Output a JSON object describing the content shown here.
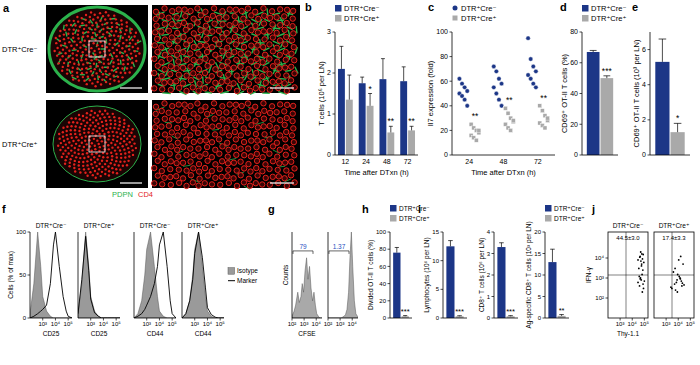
{
  "panel_a": {
    "title": "a",
    "rows": [
      "DTR⁺Cre⁻",
      "DTR⁺Cre⁺"
    ],
    "legend": [
      {
        "name": "PDPN",
        "color": "#2bb24c"
      },
      {
        "name": "CD4",
        "color": "#e3211c"
      }
    ]
  },
  "chart_data": [
    {
      "type": "bar",
      "title": "b",
      "y_label": "T cells (10⁶ per LN)",
      "x_label": "Time after DTxn (h)",
      "categories": [
        "12",
        "24",
        "48",
        "72"
      ],
      "ylim": [
        0,
        3
      ],
      "yticks": [
        0,
        1,
        2,
        3
      ],
      "legend": "top",
      "series": [
        {
          "name": "DTR⁺Cre⁻",
          "color": "#1c3687",
          "values": [
            2.1,
            1.75,
            1.85,
            1.8
          ],
          "errors": [
            0.55,
            0.15,
            0.5,
            0.35
          ]
        },
        {
          "name": "DTR⁺Cre⁺",
          "color": "#a9a9a9",
          "values": [
            1.35,
            1.2,
            0.55,
            0.6
          ],
          "errors": [
            0.6,
            0.3,
            0.15,
            0.1
          ]
        }
      ],
      "annotations": [
        null,
        "*",
        "**",
        "**"
      ]
    },
    {
      "type": "scatter",
      "title": "c",
      "y_label": "Il7 expression (fold)",
      "x_label": "Time after DTxn (h)",
      "categories": [
        "24",
        "48",
        "72"
      ],
      "ylim": [
        0,
        100
      ],
      "yticks": [
        0,
        20,
        40,
        60,
        80,
        100
      ],
      "legend": "top",
      "series": [
        {
          "name": "DTR⁺Cre⁻",
          "color": "#1c3687",
          "marker": "circle",
          "values": [
            [
              62,
              58,
              55,
              52,
              50,
              48,
              45,
              40
            ],
            [
              72,
              68,
              62,
              58,
              55,
              50,
              45,
              40
            ],
            [
              95,
              78,
              72,
              68,
              65,
              62,
              58,
              55
            ]
          ]
        },
        {
          "name": "DTR⁺Cre⁺",
          "color": "#a9a9a9",
          "marker": "square",
          "values": [
            [
              25,
              22,
              20,
              18,
              16,
              14,
              12,
              20
            ],
            [
              38,
              34,
              30,
              27,
              25,
              22,
              20,
              28
            ],
            [
              40,
              36,
              32,
              28,
              26,
              24,
              22,
              30
            ]
          ]
        }
      ],
      "annotations": [
        "**",
        "**",
        "**"
      ]
    },
    {
      "type": "bar",
      "title": "d",
      "y_label": "CD69⁺ OT-II T cells (%)",
      "categories": [
        null
      ],
      "ylim": [
        0,
        80
      ],
      "yticks": [
        0,
        20,
        40,
        60,
        80
      ],
      "legend": "top",
      "series": [
        {
          "name": "DTR⁺Cre⁻",
          "color": "#1c3687",
          "values": [
            67
          ],
          "errors": [
            1
          ]
        },
        {
          "name": "DTR⁺Cre⁺",
          "color": "#a9a9a9",
          "values": [
            50
          ],
          "errors": [
            1.5
          ]
        }
      ],
      "annotations": [
        "***"
      ]
    },
    {
      "type": "bar",
      "title": "e",
      "y_label": "CD69⁺ OT-II T cells (10³ per LN)",
      "categories": [
        null
      ],
      "ylim": [
        0,
        7
      ],
      "yticks": [
        0,
        2,
        4,
        6
      ],
      "series": [
        {
          "color": "#1c3687",
          "values": [
            5.3
          ],
          "errors": [
            1.3
          ]
        },
        {
          "color": "#a9a9a9",
          "values": [
            1.3
          ],
          "errors": [
            0.5
          ]
        }
      ],
      "annotations": [
        "*"
      ]
    },
    {
      "type": "area",
      "title": "f",
      "subtitle": "DTR⁺Cre⁻",
      "y_label": "Cells (% of max)",
      "x_label": "CD25",
      "log": "x",
      "x": [
        100,
        200,
        400,
        700,
        1000,
        2000,
        4000,
        7000,
        10000,
        20000,
        40000,
        70000,
        100000,
        200000
      ],
      "xlim": [
        100,
        200000
      ],
      "xticks": [
        {
          "value": 1000,
          "label": "10³"
        },
        {
          "value": 10000,
          "label": "10⁴"
        },
        {
          "value": 100000,
          "label": "10⁵"
        }
      ],
      "ylim": [
        0,
        100
      ],
      "yticks": [
        0,
        50,
        100
      ],
      "series": [
        {
          "type": "area",
          "color": "#9a9a9a",
          "values": [
            5,
            40,
            100,
            60,
            25,
            8,
            2,
            0,
            0,
            0,
            0,
            0,
            0,
            0
          ]
        },
        {
          "type": "line",
          "color": "#000000",
          "values": [
            0,
            2,
            5,
            8,
            10,
            15,
            40,
            85,
            100,
            60,
            25,
            8,
            2,
            0
          ]
        }
      ]
    },
    {
      "type": "area",
      "subtitle": "DTR⁺Cre⁺",
      "x_label": "CD25",
      "log": "x",
      "tick_labels": "x",
      "x": [
        100,
        200,
        400,
        700,
        1000,
        2000,
        4000,
        7000,
        10000,
        20000,
        40000,
        70000,
        100000,
        200000
      ],
      "xlim": [
        100,
        200000
      ],
      "xticks": [
        {
          "value": 1000,
          "label": "10³"
        },
        {
          "value": 10000,
          "label": "10⁴"
        },
        {
          "value": 100000,
          "label": "10⁵"
        }
      ],
      "ylim": [
        0,
        100
      ],
      "series": [
        {
          "type": "area",
          "color": "#9a9a9a",
          "values": [
            5,
            40,
            100,
            60,
            25,
            8,
            2,
            0,
            0,
            0,
            0,
            0,
            0,
            0
          ]
        },
        {
          "type": "line",
          "color": "#000000",
          "values": [
            5,
            45,
            95,
            55,
            22,
            6,
            2,
            0,
            0,
            0,
            0,
            0,
            0,
            0
          ]
        }
      ]
    },
    {
      "type": "area",
      "subtitle": "DTR⁺Cre⁻",
      "x_label": "CD44",
      "log": "x",
      "tick_labels": "x",
      "x": [
        100,
        200,
        400,
        700,
        1000,
        2000,
        4000,
        7000,
        10000,
        20000,
        40000,
        70000,
        100000,
        200000
      ],
      "xlim": [
        100,
        200000
      ],
      "xticks": [
        {
          "value": 1000,
          "label": "10³"
        },
        {
          "value": 10000,
          "label": "10⁴"
        },
        {
          "value": 100000,
          "label": "10⁵"
        }
      ],
      "ylim": [
        0,
        100
      ],
      "series": [
        {
          "type": "area",
          "color": "#9a9a9a",
          "values": [
            0,
            5,
            20,
            50,
            80,
            100,
            60,
            25,
            8,
            2,
            0,
            0,
            0,
            0
          ]
        },
        {
          "type": "line",
          "color": "#000000",
          "values": [
            0,
            2,
            5,
            10,
            15,
            25,
            40,
            60,
            85,
            100,
            60,
            20,
            5,
            0
          ]
        }
      ]
    },
    {
      "type": "area",
      "subtitle": "DTR⁺Cre⁺",
      "x_label": "CD44",
      "log": "x",
      "tick_labels": "x",
      "legend": "right",
      "x": [
        100,
        200,
        400,
        700,
        1000,
        2000,
        4000,
        7000,
        10000,
        20000,
        40000,
        70000,
        100000,
        200000
      ],
      "xlim": [
        100,
        200000
      ],
      "xticks": [
        {
          "value": 1000,
          "label": "10³"
        },
        {
          "value": 10000,
          "label": "10⁴"
        },
        {
          "value": 100000,
          "label": "10⁵"
        }
      ],
      "ylim": [
        0,
        100
      ],
      "series": [
        {
          "name": "Isotype",
          "type": "area",
          "color": "#9a9a9a",
          "values": [
            0,
            5,
            20,
            50,
            80,
            100,
            60,
            25,
            8,
            2,
            0,
            0,
            0,
            0
          ]
        },
        {
          "name": "Marker",
          "type": "line",
          "color": "#000000",
          "values": [
            0,
            5,
            20,
            45,
            75,
            100,
            70,
            35,
            12,
            4,
            1,
            0,
            0,
            0
          ]
        }
      ]
    },
    {
      "type": "area",
      "title": "g",
      "y_label": "Counts",
      "x_label": "CFSE",
      "log": "x",
      "tick_labels": "x",
      "x": [
        100,
        150,
        200,
        300,
        400,
        550,
        700,
        900,
        1200,
        1600,
        2100,
        2800,
        3700,
        5000,
        6500,
        8500,
        11000,
        15000,
        20000,
        30000
      ],
      "xlim": [
        100,
        30000
      ],
      "xticks": [
        {
          "value": 100,
          "label": "10²"
        },
        {
          "value": 1000,
          "label": "10³"
        },
        {
          "value": 10000,
          "label": "10⁴"
        }
      ],
      "ylim": [
        0,
        100
      ],
      "series": [
        {
          "type": "area",
          "color": "#a9a9a9",
          "values": [
            2,
            8,
            15,
            30,
            18,
            25,
            40,
            30,
            55,
            70,
            45,
            60,
            35,
            20,
            30,
            15,
            5,
            2,
            0,
            0
          ]
        }
      ],
      "annotations": [
        "79"
      ]
    },
    {
      "type": "area",
      "log": "x",
      "tick_labels": "x",
      "x": [
        100,
        150,
        200,
        300,
        400,
        550,
        700,
        900,
        1200,
        1600,
        2100,
        2800,
        3700,
        5000,
        6500,
        8500,
        11000,
        15000,
        20000,
        30000
      ],
      "xlim": [
        100,
        30000
      ],
      "xticks": [
        {
          "value": 100,
          "label": "10²"
        },
        {
          "value": 1000,
          "label": "10³"
        },
        {
          "value": 10000,
          "label": "10⁴"
        }
      ],
      "ylim": [
        0,
        100
      ],
      "series": [
        {
          "type": "area",
          "color": "#a9a9a9",
          "values": [
            0,
            0,
            0,
            0,
            0,
            0,
            0,
            0,
            0,
            1,
            2,
            4,
            10,
            30,
            70,
            100,
            60,
            20,
            5,
            1
          ]
        }
      ],
      "annotations": [
        "1.37"
      ]
    },
    {
      "type": "bar",
      "title": "h",
      "y_label": "Divided OT-II T cells (%)",
      "categories": [
        null
      ],
      "ylim": [
        0,
        100
      ],
      "yticks": [
        0,
        20,
        40,
        60,
        80,
        100
      ],
      "legend": "top",
      "series": [
        {
          "name": "DTR⁺Cre⁻",
          "color": "#1c3687",
          "values": [
            76
          ],
          "errors": [
            6
          ]
        },
        {
          "name": "DTR⁺Cre⁺",
          "color": "#a9a9a9",
          "values": [
            2
          ],
          "errors": [
            0.8
          ]
        }
      ],
      "annotations": [
        "***"
      ]
    },
    {
      "type": "bar",
      "title": "i",
      "y_label": "Lymphocytes (10⁶ per LN)",
      "categories": [
        null
      ],
      "ylim": [
        0,
        15
      ],
      "yticks": [
        0,
        5,
        10,
        15
      ],
      "series": [
        {
          "color": "#1c3687",
          "values": [
            12.5
          ],
          "errors": [
            1
          ]
        },
        {
          "color": "#a9a9a9",
          "values": [
            0.3
          ],
          "errors": [
            0.1
          ]
        }
      ],
      "annotations": [
        "***"
      ]
    },
    {
      "type": "bar",
      "y_label": "CD8⁺ T cells (10⁶ per LN)",
      "categories": [
        null
      ],
      "ylim": [
        0,
        4
      ],
      "yticks": [
        0,
        1,
        2,
        3,
        4
      ],
      "series": [
        {
          "color": "#1c3687",
          "values": [
            3.3
          ],
          "errors": [
            0.2
          ]
        },
        {
          "color": "#a9a9a9",
          "values": [
            0.08
          ],
          "errors": [
            0.03
          ]
        }
      ],
      "annotations": [
        "***"
      ]
    },
    {
      "type": "bar",
      "y_label": "Ag-specific CD8⁺ T cells (10³ per LN)",
      "categories": [
        null
      ],
      "ylim": [
        0,
        20
      ],
      "yticks": [
        0,
        5,
        10,
        15,
        20
      ],
      "legend": "top",
      "series": [
        {
          "name": "DTR⁺Cre⁻",
          "color": "#1c3687",
          "values": [
            13
          ],
          "errors": [
            3
          ]
        },
        {
          "name": "DTR⁺Cre⁺",
          "color": "#a9a9a9",
          "values": [
            0.5
          ],
          "errors": [
            0.3
          ]
        }
      ],
      "annotations": [
        "**"
      ]
    },
    {
      "type": "scatter",
      "title": "j",
      "subtitle": "DTR⁺Cre⁻",
      "y_label": "IFN-γ",
      "x_label": "Thy-1.1",
      "log": true,
      "x": [
        30000,
        45000,
        60000,
        80000,
        35000,
        50000,
        70000,
        90000,
        40000,
        55000,
        65000,
        85000,
        30000,
        48000,
        75000,
        100000,
        42000,
        58000,
        68000,
        52000,
        38000,
        62000,
        78000,
        46000
      ],
      "xlim": [
        100,
        200000
      ],
      "xticks": [
        {
          "value": 1000,
          "label": "10³"
        },
        {
          "value": 10000,
          "label": "10⁴"
        },
        {
          "value": 100000,
          "label": "10⁵"
        }
      ],
      "ylim": [
        10,
        200000
      ],
      "yticks": [
        {
          "value": 100,
          "label": "10²"
        },
        {
          "value": 1000,
          "label": "10³"
        },
        {
          "value": 10000,
          "label": "10⁴"
        }
      ],
      "series": [
        {
          "color": "#000000",
          "values": [
            8000,
            12000,
            5000,
            15000,
            3000,
            20000,
            9000,
            6000,
            400,
            800,
            1500,
            300,
            600,
            1000,
            2500,
            700,
            11000,
            4000,
            200,
            7000,
            1200,
            16000,
            500,
            900
          ]
        }
      ],
      "annotations": [
        "44.5±3.0"
      ]
    },
    {
      "type": "scatter",
      "subtitle": "DTR⁺Cre⁺",
      "log": true,
      "tick_labels": "x",
      "x": [
        3000,
        5000,
        8000,
        12000,
        20000,
        4000,
        7000,
        15000,
        25000,
        6000,
        9000,
        18000,
        2500,
        11000,
        30000,
        14000,
        5500,
        22000,
        8500,
        16000
      ],
      "xlim": [
        100,
        200000
      ],
      "xticks": [
        {
          "value": 1000,
          "label": "10³"
        },
        {
          "value": 10000,
          "label": "10⁴"
        },
        {
          "value": 100000,
          "label": "10⁵"
        }
      ],
      "ylim": [
        10,
        200000
      ],
      "series": [
        {
          "color": "#000000",
          "values": [
            300,
            500,
            800,
            1200,
            400,
            2000,
            600,
            900,
            5000,
            250,
            1500,
            700,
            350,
            8000,
            450,
            1000,
            3000,
            550,
            200,
            12000
          ]
        }
      ],
      "annotations": [
        "17.4±3.3"
      ]
    }
  ]
}
